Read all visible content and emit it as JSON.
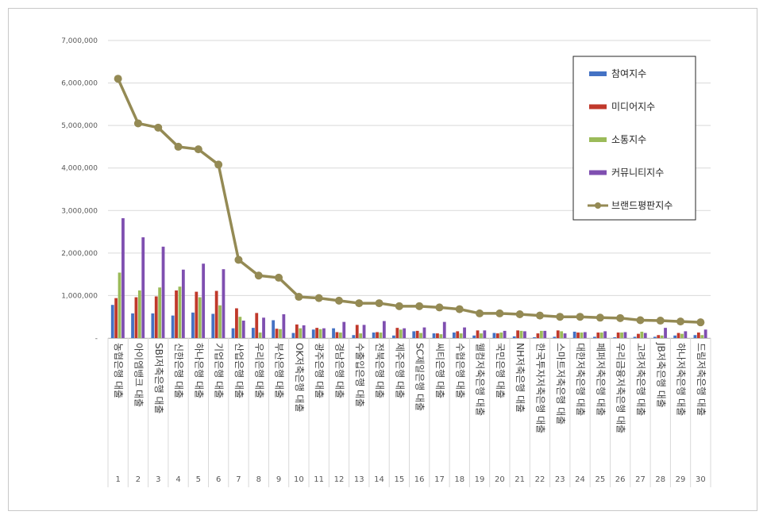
{
  "chart_data": {
    "type": "bar",
    "categories": [
      "농협은행 대출",
      "아이엠뱅크 대출",
      "SBI저축은행 대출",
      "신한은행 대출",
      "하나은행 대출",
      "기업은행 대출",
      "산업은행 대출",
      "우리은행 대출",
      "부산은행 대출",
      "OK저축은행 대출",
      "광주은행 대출",
      "경남은행 대출",
      "수출입은행 대출",
      "전북은행 대출",
      "제주은행 대출",
      "SC제일은행 대출",
      "씨티은행 대출",
      "수협은행 대출",
      "웰컴저축은행 대출",
      "국민은행 대출",
      "NH저축은행 대출",
      "한국투자저축은행 대출",
      "스마트저축은행 대출",
      "대한저축은행 대출",
      "페퍼저축은행 대출",
      "우리금융저축은행 대출",
      "고려저축은행 대출",
      "JB저축은행 대출",
      "하나저축은행 대출",
      "드림저축은행 대출"
    ],
    "ranks": [
      "1",
      "2",
      "3",
      "4",
      "5",
      "6",
      "7",
      "8",
      "9",
      "10",
      "11",
      "12",
      "13",
      "14",
      "15",
      "16",
      "17",
      "18",
      "19",
      "20",
      "21",
      "22",
      "23",
      "24",
      "25",
      "26",
      "27",
      "28",
      "29",
      "30"
    ],
    "ylim": [
      0,
      7000000
    ],
    "yticks": [
      {
        "v": 0,
        "label": "-"
      },
      {
        "v": 1000000,
        "label": "1,000,000"
      },
      {
        "v": 2000000,
        "label": "2,000,000"
      },
      {
        "v": 3000000,
        "label": "3,000,000"
      },
      {
        "v": 4000000,
        "label": "4,000,000"
      },
      {
        "v": 5000000,
        "label": "5,000,000"
      },
      {
        "v": 6000000,
        "label": "6,000,000"
      },
      {
        "v": 7000000,
        "label": "7,000,000"
      }
    ],
    "grid": true,
    "legend": "top-right",
    "series": [
      {
        "name": "참여지수",
        "kind": "bar",
        "color": "#4472c4",
        "values": [
          780000,
          580000,
          580000,
          530000,
          600000,
          570000,
          230000,
          240000,
          420000,
          120000,
          200000,
          230000,
          70000,
          130000,
          60000,
          160000,
          110000,
          130000,
          60000,
          120000,
          40000,
          20000,
          30000,
          150000,
          30000,
          20000,
          30000,
          30000,
          60000,
          70000
        ]
      },
      {
        "name": "미디어지수",
        "kind": "bar",
        "color": "#c0392b",
        "values": [
          940000,
          960000,
          980000,
          1120000,
          1090000,
          1110000,
          700000,
          590000,
          220000,
          320000,
          240000,
          140000,
          310000,
          140000,
          240000,
          170000,
          110000,
          160000,
          180000,
          110000,
          180000,
          110000,
          180000,
          130000,
          130000,
          130000,
          100000,
          70000,
          120000,
          130000
        ]
      },
      {
        "name": "소통지수",
        "kind": "bar",
        "color": "#9bbb59",
        "values": [
          1540000,
          1120000,
          1190000,
          1210000,
          960000,
          770000,
          500000,
          130000,
          210000,
          230000,
          210000,
          130000,
          110000,
          130000,
          200000,
          120000,
          90000,
          110000,
          110000,
          130000,
          170000,
          170000,
          160000,
          130000,
          130000,
          130000,
          150000,
          60000,
          100000,
          70000
        ]
      },
      {
        "name": "커뮤니티지수",
        "kind": "bar",
        "color": "#7f4fb0",
        "values": [
          2820000,
          2370000,
          2150000,
          1610000,
          1750000,
          1620000,
          410000,
          480000,
          560000,
          300000,
          230000,
          380000,
          310000,
          400000,
          230000,
          250000,
          380000,
          250000,
          180000,
          170000,
          160000,
          170000,
          110000,
          140000,
          160000,
          140000,
          120000,
          240000,
          160000,
          200000
        ]
      },
      {
        "name": "브랜드평판지수",
        "kind": "line",
        "color": "#948a54",
        "values": [
          6100000,
          5050000,
          4950000,
          4500000,
          4440000,
          4080000,
          1840000,
          1470000,
          1420000,
          970000,
          940000,
          880000,
          820000,
          820000,
          750000,
          750000,
          720000,
          680000,
          580000,
          580000,
          560000,
          530000,
          500000,
          500000,
          480000,
          470000,
          420000,
          410000,
          390000,
          370000
        ]
      }
    ]
  }
}
